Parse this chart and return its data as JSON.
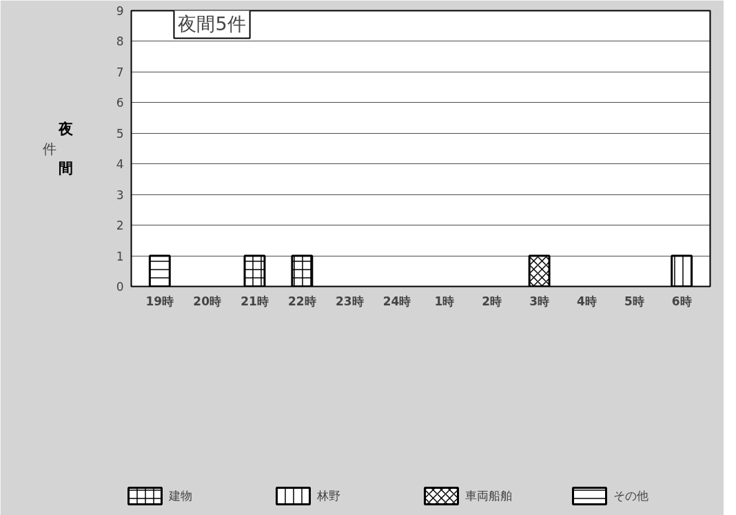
{
  "chart_data": {
    "type": "bar",
    "stacked": true,
    "title": "夜間5件",
    "ylabel": "夜間",
    "annotations": [
      "件"
    ],
    "categories": [
      "19時",
      "20時",
      "21時",
      "22時",
      "23時",
      "24時",
      "1時",
      "2時",
      "3時",
      "4時",
      "5時",
      "6時"
    ],
    "series": [
      {
        "name": "建物",
        "color": "#ffffff",
        "values": [
          0,
          0,
          1,
          1,
          0,
          0,
          0,
          0,
          0,
          0,
          0,
          0
        ]
      },
      {
        "name": "林野",
        "color": "#ffffff",
        "values": [
          0,
          0,
          0,
          0,
          0,
          0,
          0,
          0,
          0,
          0,
          0,
          1
        ]
      },
      {
        "name": "車両船舶",
        "color": "#ffffff",
        "values": [
          0,
          0,
          0,
          0,
          0,
          0,
          0,
          0,
          1,
          0,
          0,
          0
        ]
      },
      {
        "name": "その他",
        "color": "#ffffff",
        "values": [
          1,
          0,
          0,
          0,
          0,
          0,
          0,
          0,
          0,
          0,
          0,
          0
        ]
      }
    ],
    "ylim": [
      0,
      9
    ],
    "yticks": [
      0,
      1,
      2,
      3,
      4,
      5,
      6,
      7,
      8,
      9
    ],
    "grid": "y",
    "legend": "bottom"
  }
}
